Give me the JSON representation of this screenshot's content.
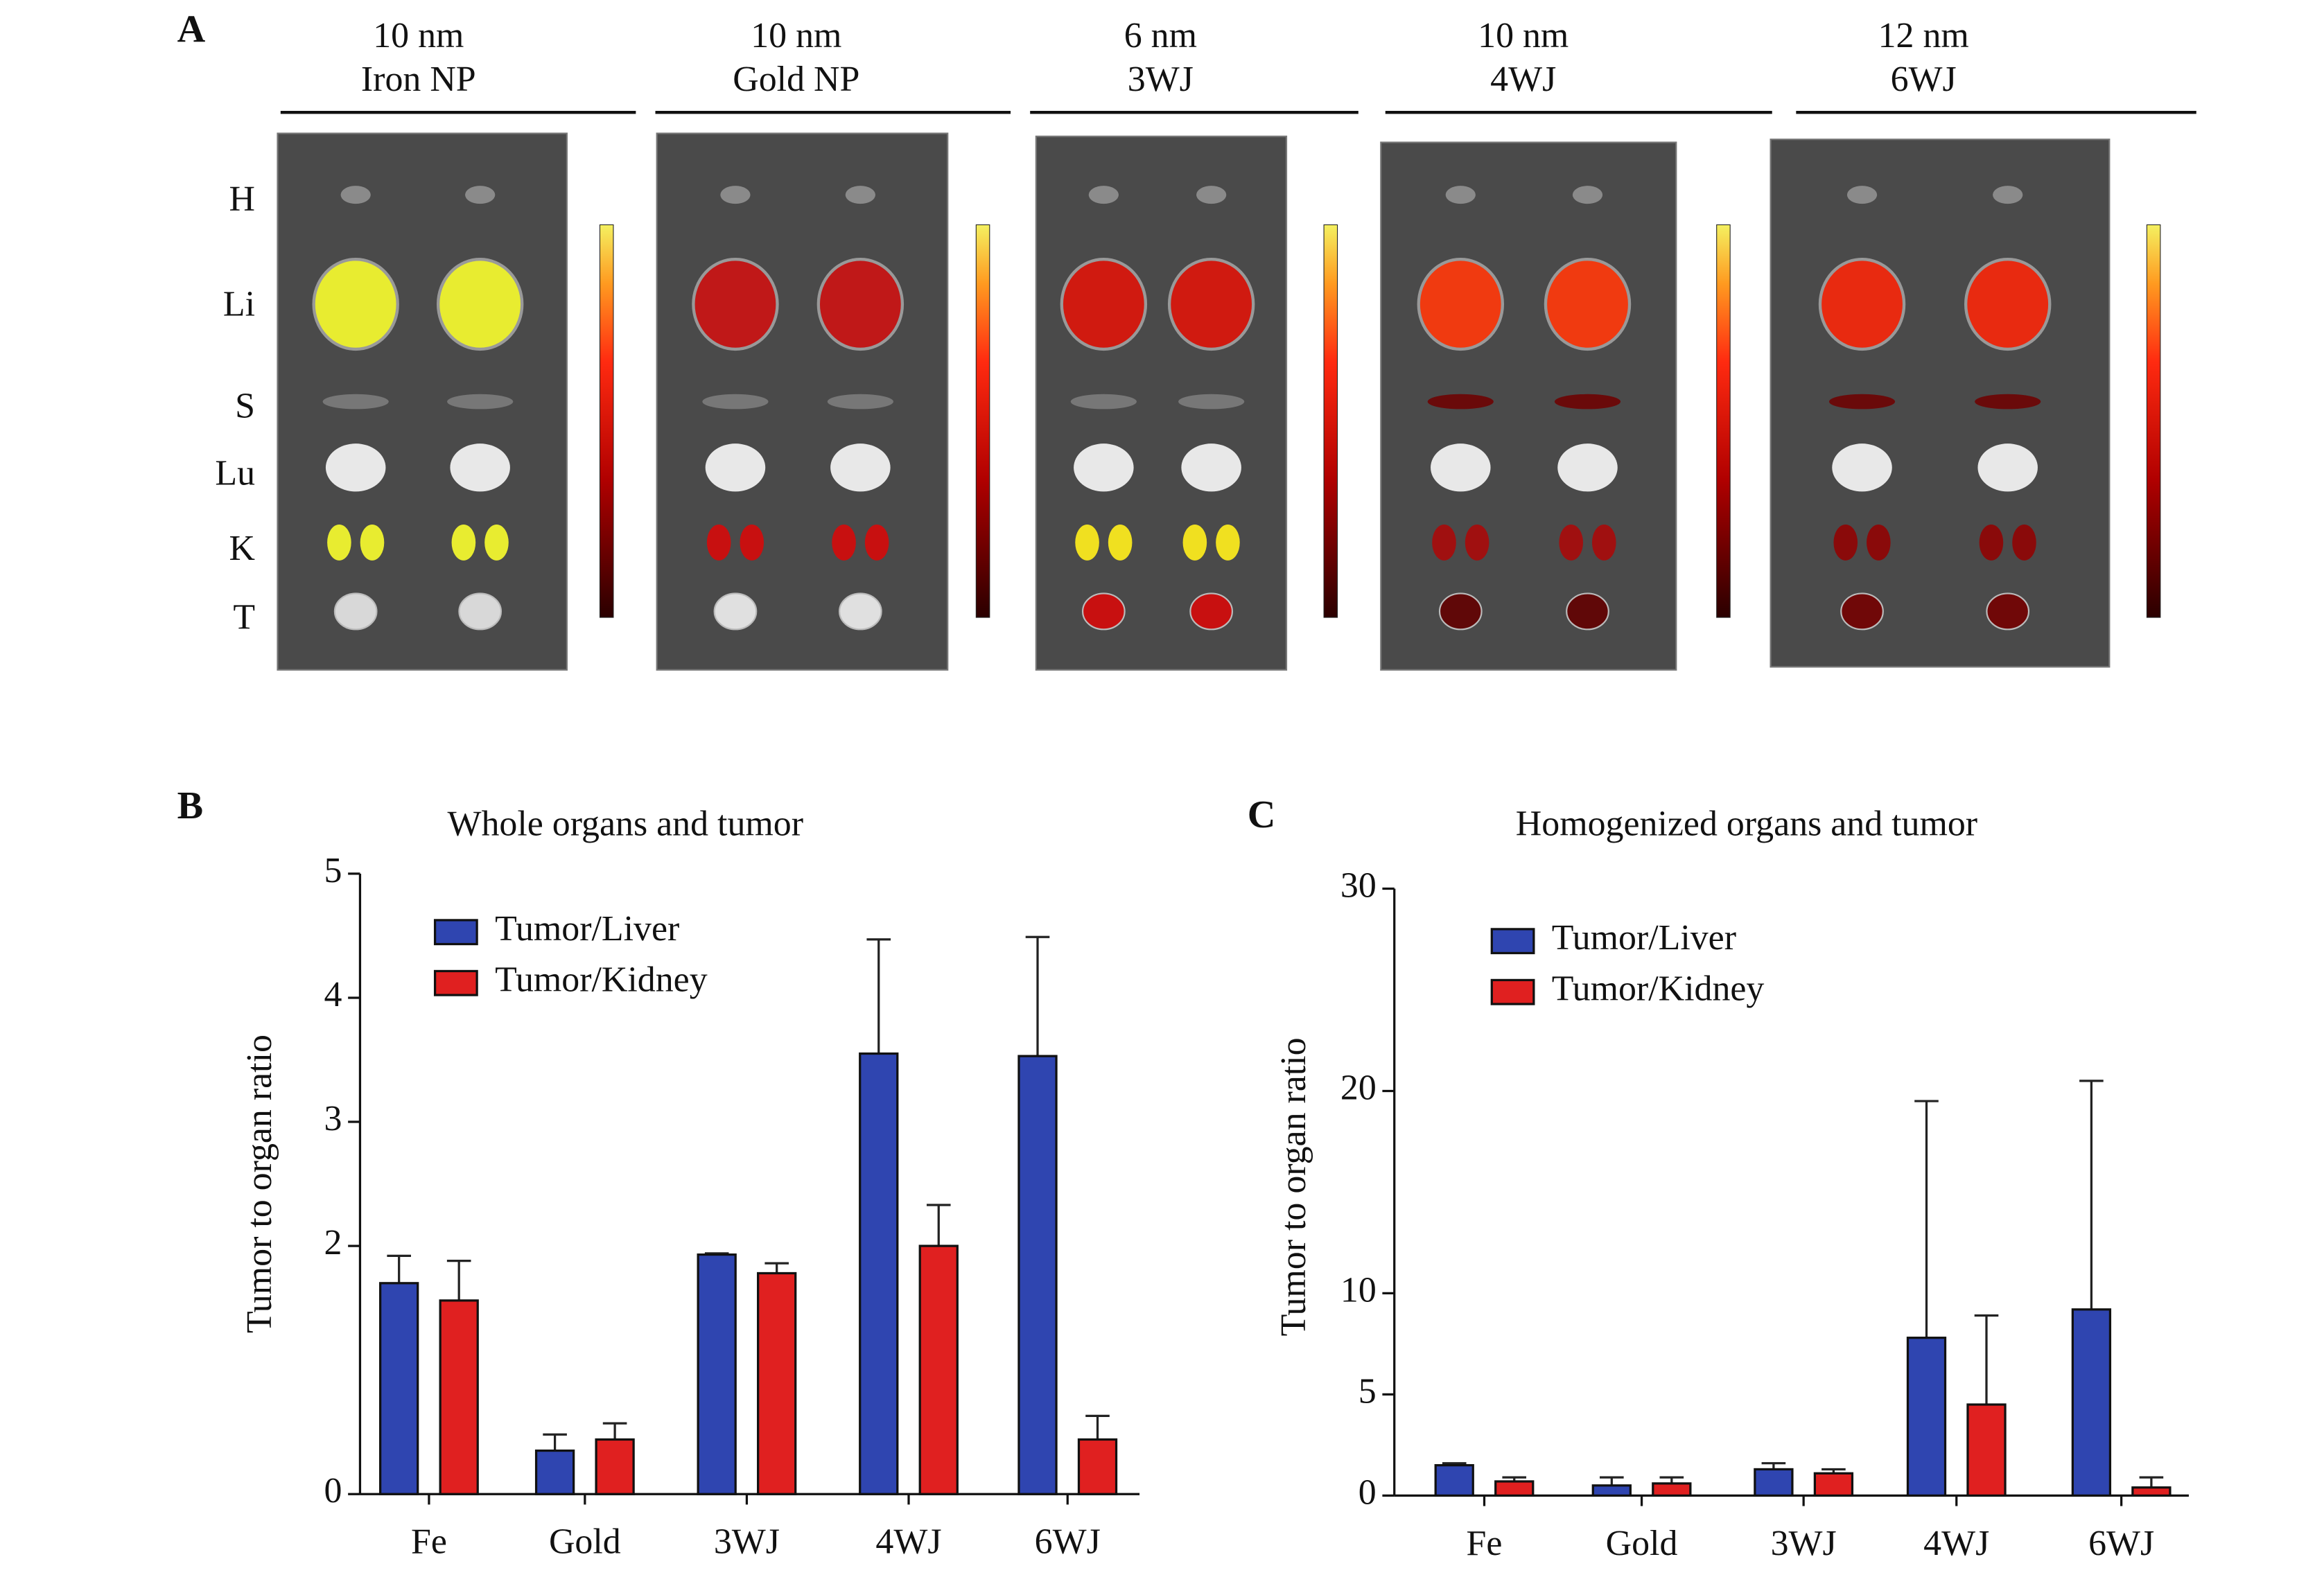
{
  "panel_a": {
    "panel": "A",
    "columns": [
      {
        "size": "10 nm",
        "name": "Iron NP"
      },
      {
        "size": "10 nm",
        "name": "Gold NP"
      },
      {
        "size": "6 nm",
        "name": "3WJ"
      },
      {
        "size": "10 nm",
        "name": "4WJ"
      },
      {
        "size": "12 nm",
        "name": "6WJ"
      }
    ],
    "rows": [
      "H",
      "Li",
      "S",
      "Lu",
      "K",
      "T"
    ]
  },
  "chart_data": [
    {
      "type": "bar",
      "panel": "B",
      "title": "Whole organs and tumor",
      "ylabel": "Tumor to organ ratio",
      "categories": [
        "Fe",
        "Gold",
        "3WJ",
        "4WJ",
        "6WJ"
      ],
      "series": [
        {
          "name": "Tumor/Liver",
          "color": "#2f45b0",
          "values": [
            1.7,
            0.35,
            1.93,
            3.55,
            3.53
          ],
          "errors": [
            0.22,
            0.13,
            0.01,
            0.92,
            0.96
          ]
        },
        {
          "name": "Tumor/Kidney",
          "color": "#e02020",
          "values": [
            1.56,
            0.44,
            1.78,
            2.0,
            0.44
          ],
          "errors": [
            0.32,
            0.13,
            0.08,
            0.33,
            0.19
          ]
        }
      ],
      "ylim": [
        0,
        5
      ],
      "yticks": [
        0,
        2,
        3,
        4,
        5
      ],
      "legend": "upper left"
    },
    {
      "type": "bar",
      "panel": "C",
      "title": "Homogenized organs and tumor",
      "ylabel": "Tumor to organ ratio",
      "categories": [
        "Fe",
        "Gold",
        "3WJ",
        "4WJ",
        "6WJ"
      ],
      "series": [
        {
          "name": "Tumor/Liver",
          "color": "#2f45b0",
          "values": [
            1.5,
            0.5,
            1.3,
            7.8,
            9.2
          ],
          "errors": [
            0.1,
            0.4,
            0.3,
            11.7,
            11.3
          ]
        },
        {
          "name": "Tumor/Kidney",
          "color": "#e02020",
          "values": [
            0.7,
            0.6,
            1.1,
            4.5,
            0.4
          ],
          "errors": [
            0.2,
            0.3,
            0.2,
            4.4,
            0.5
          ]
        }
      ],
      "ylim": [
        0,
        30
      ],
      "yticks": [
        0,
        5,
        10,
        20,
        30
      ],
      "legend": "upper left"
    }
  ]
}
